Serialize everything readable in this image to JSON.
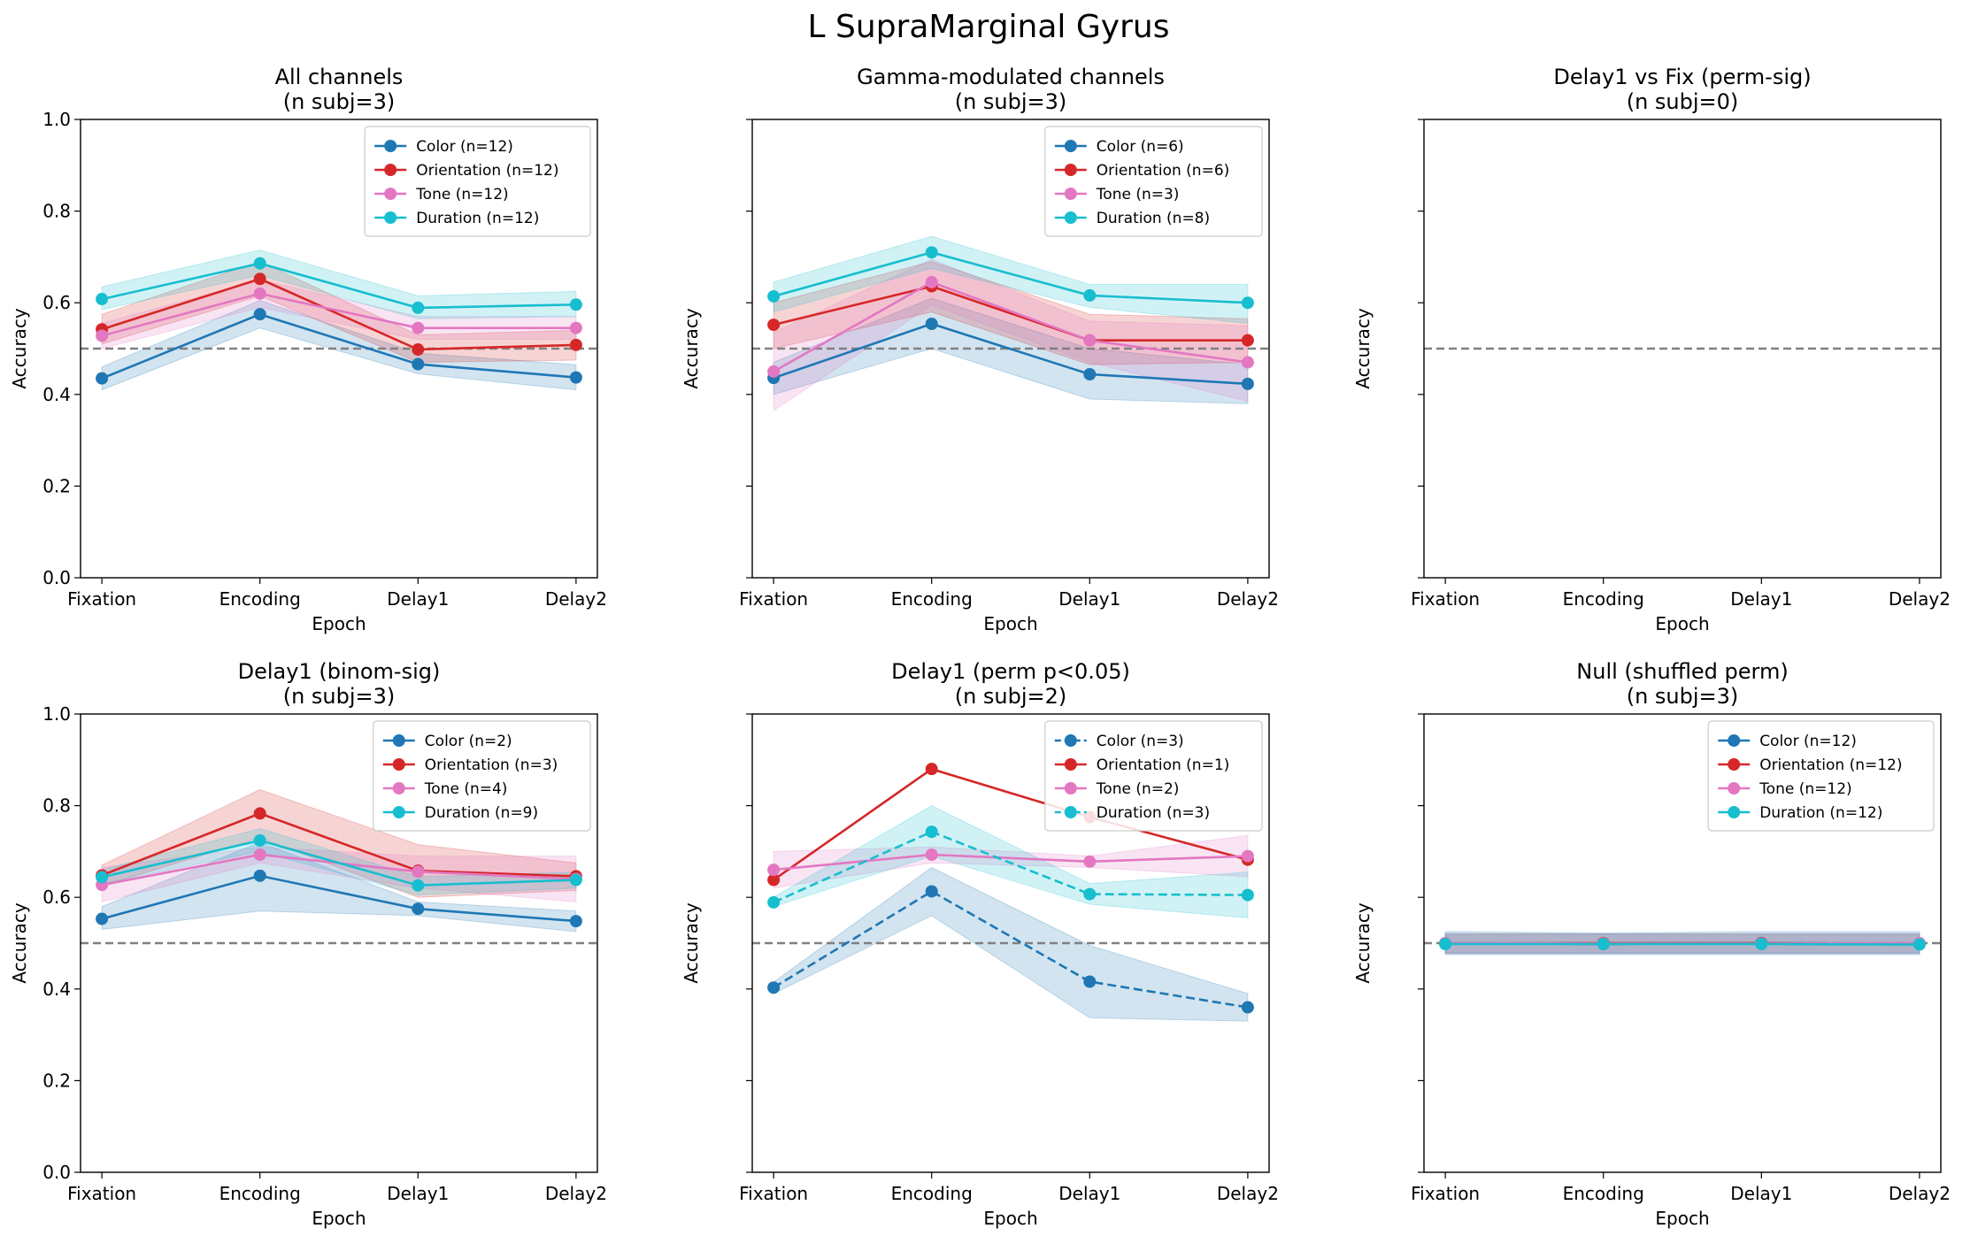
{
  "figure": {
    "suptitle": "L SupraMarginal Gyrus"
  },
  "colors": {
    "Color": "#1f77b4",
    "Orientation": "#d62728",
    "Tone": "#e377c2",
    "Duration": "#17becf",
    "chance": "#808080"
  },
  "chart_data": [
    {
      "type": "line",
      "title": "All channels",
      "subtitle": "(n subj=3)",
      "categories": [
        "Fixation",
        "Encoding",
        "Delay1",
        "Delay2"
      ],
      "xlabel": "Epoch",
      "ylabel": "Accuracy",
      "ylim": [
        0,
        1
      ],
      "yticks": [
        "0.0",
        "0.2",
        "0.4",
        "0.6",
        "0.8",
        "1.0"
      ],
      "show_ytick_labels": true,
      "chance": 0.5,
      "grid": false,
      "legend": "upper right",
      "series": [
        {
          "key": "Color",
          "name": "Color (n=12)",
          "values": [
            0.435,
            0.575,
            0.466,
            0.437
          ],
          "lower": [
            0.41,
            0.545,
            0.445,
            0.41
          ],
          "upper": [
            0.46,
            0.605,
            0.49,
            0.465
          ],
          "dashed": false
        },
        {
          "key": "Orientation",
          "name": "Orientation (n=12)",
          "values": [
            0.542,
            0.652,
            0.498,
            0.508
          ],
          "lower": [
            0.51,
            0.615,
            0.47,
            0.475
          ],
          "upper": [
            0.575,
            0.69,
            0.53,
            0.54
          ],
          "dashed": false
        },
        {
          "key": "Tone",
          "name": "Tone (n=12)",
          "values": [
            0.528,
            0.62,
            0.545,
            0.545
          ],
          "lower": [
            0.5,
            0.59,
            0.52,
            0.52
          ],
          "upper": [
            0.555,
            0.65,
            0.57,
            0.57
          ],
          "dashed": false
        },
        {
          "key": "Duration",
          "name": "Duration (n=12)",
          "values": [
            0.608,
            0.686,
            0.589,
            0.596
          ],
          "lower": [
            0.585,
            0.66,
            0.565,
            0.57
          ],
          "upper": [
            0.635,
            0.715,
            0.615,
            0.625
          ],
          "dashed": false
        }
      ]
    },
    {
      "type": "line",
      "title": "Gamma-modulated channels",
      "subtitle": "(n subj=3)",
      "categories": [
        "Fixation",
        "Encoding",
        "Delay1",
        "Delay2"
      ],
      "xlabel": "Epoch",
      "ylabel": "Accuracy",
      "ylim": [
        0,
        1
      ],
      "yticks": [
        "0.0",
        "0.2",
        "0.4",
        "0.6",
        "0.8",
        "1.0"
      ],
      "show_ytick_labels": false,
      "chance": 0.5,
      "grid": false,
      "legend": "upper right",
      "series": [
        {
          "key": "Color",
          "name": "Color (n=6)",
          "values": [
            0.436,
            0.554,
            0.444,
            0.423
          ],
          "lower": [
            0.4,
            0.5,
            0.39,
            0.38
          ],
          "upper": [
            0.47,
            0.61,
            0.5,
            0.465
          ],
          "dashed": false
        },
        {
          "key": "Orientation",
          "name": "Orientation (n=6)",
          "values": [
            0.552,
            0.636,
            0.518,
            0.518
          ],
          "lower": [
            0.5,
            0.58,
            0.465,
            0.47
          ],
          "upper": [
            0.6,
            0.69,
            0.575,
            0.565
          ],
          "dashed": false
        },
        {
          "key": "Tone",
          "name": "Tone (n=3)",
          "values": [
            0.45,
            0.645,
            0.518,
            0.47
          ],
          "lower": [
            0.365,
            0.595,
            0.47,
            0.385
          ],
          "upper": [
            0.535,
            0.695,
            0.56,
            0.55
          ],
          "dashed": false
        },
        {
          "key": "Duration",
          "name": "Duration (n=8)",
          "values": [
            0.614,
            0.71,
            0.616,
            0.6
          ],
          "lower": [
            0.58,
            0.675,
            0.59,
            0.555
          ],
          "upper": [
            0.645,
            0.745,
            0.64,
            0.64
          ],
          "dashed": false
        }
      ]
    },
    {
      "type": "line",
      "title": "Delay1 vs Fix (perm-sig)",
      "subtitle": "(n subj=0)",
      "categories": [
        "Fixation",
        "Encoding",
        "Delay1",
        "Delay2"
      ],
      "xlabel": "Epoch",
      "ylabel": "Accuracy",
      "ylim": [
        0,
        1
      ],
      "yticks": [
        "0.0",
        "0.2",
        "0.4",
        "0.6",
        "0.8",
        "1.0"
      ],
      "show_ytick_labels": false,
      "chance": 0.5,
      "grid": false,
      "legend": "none",
      "series": []
    },
    {
      "type": "line",
      "title": "Delay1 (binom-sig)",
      "subtitle": "(n subj=3)",
      "categories": [
        "Fixation",
        "Encoding",
        "Delay1",
        "Delay2"
      ],
      "xlabel": "Epoch",
      "ylabel": "Accuracy",
      "ylim": [
        0,
        1
      ],
      "yticks": [
        "0.0",
        "0.2",
        "0.4",
        "0.6",
        "0.8",
        "1.0"
      ],
      "show_ytick_labels": true,
      "chance": 0.5,
      "grid": false,
      "legend": "upper right",
      "series": [
        {
          "key": "Color",
          "name": "Color (n=2)",
          "values": [
            0.553,
            0.647,
            0.575,
            0.548
          ],
          "lower": [
            0.53,
            0.57,
            0.56,
            0.525
          ],
          "upper": [
            0.58,
            0.72,
            0.59,
            0.57
          ],
          "dashed": false
        },
        {
          "key": "Orientation",
          "name": "Orientation (n=3)",
          "values": [
            0.648,
            0.783,
            0.658,
            0.646
          ],
          "lower": [
            0.625,
            0.73,
            0.6,
            0.615
          ],
          "upper": [
            0.67,
            0.835,
            0.715,
            0.675
          ],
          "dashed": false
        },
        {
          "key": "Tone",
          "name": "Tone (n=4)",
          "values": [
            0.627,
            0.693,
            0.656,
            0.64
          ],
          "lower": [
            0.59,
            0.675,
            0.62,
            0.59
          ],
          "upper": [
            0.665,
            0.71,
            0.69,
            0.69
          ],
          "dashed": false
        },
        {
          "key": "Duration",
          "name": "Duration (n=9)",
          "values": [
            0.644,
            0.724,
            0.626,
            0.638
          ],
          "lower": [
            0.63,
            0.7,
            0.605,
            0.62
          ],
          "upper": [
            0.66,
            0.75,
            0.645,
            0.655
          ],
          "dashed": false
        }
      ]
    },
    {
      "type": "line",
      "title": "Delay1 (perm p<0.05)",
      "subtitle": "(n subj=2)",
      "categories": [
        "Fixation",
        "Encoding",
        "Delay1",
        "Delay2"
      ],
      "xlabel": "Epoch",
      "ylabel": "Accuracy",
      "ylim": [
        0,
        1
      ],
      "yticks": [
        "0.0",
        "0.2",
        "0.4",
        "0.6",
        "0.8",
        "1.0"
      ],
      "show_ytick_labels": false,
      "chance": 0.5,
      "grid": false,
      "legend": "upper right",
      "series": [
        {
          "key": "Color",
          "name": "Color (n=3)",
          "values": [
            0.403,
            0.613,
            0.416,
            0.36
          ],
          "lower": [
            0.39,
            0.56,
            0.337,
            0.33
          ],
          "upper": [
            0.415,
            0.665,
            0.495,
            0.39
          ],
          "dashed": true
        },
        {
          "key": "Orientation",
          "name": "Orientation (n=1)",
          "values": [
            0.638,
            0.88,
            0.775,
            0.682
          ],
          "lower": null,
          "upper": null,
          "dashed": false
        },
        {
          "key": "Tone",
          "name": "Tone (n=2)",
          "values": [
            0.66,
            0.693,
            0.678,
            0.69
          ],
          "lower": [
            0.62,
            0.675,
            0.665,
            0.645
          ],
          "upper": [
            0.7,
            0.71,
            0.69,
            0.735
          ],
          "dashed": false
        },
        {
          "key": "Duration",
          "name": "Duration (n=3)",
          "values": [
            0.589,
            0.743,
            0.607,
            0.605
          ],
          "lower": [
            0.58,
            0.69,
            0.585,
            0.555
          ],
          "upper": [
            0.6,
            0.8,
            0.63,
            0.655
          ],
          "dashed": true
        }
      ]
    },
    {
      "type": "line",
      "title": "Null (shuffled perm)",
      "subtitle": "(n subj=3)",
      "categories": [
        "Fixation",
        "Encoding",
        "Delay1",
        "Delay2"
      ],
      "xlabel": "Epoch",
      "ylabel": "Accuracy",
      "ylim": [
        0,
        1
      ],
      "yticks": [
        "0.0",
        "0.2",
        "0.4",
        "0.6",
        "0.8",
        "1.0"
      ],
      "show_ytick_labels": false,
      "chance": 0.5,
      "grid": false,
      "legend": "upper right",
      "series": [
        {
          "key": "Color",
          "name": "Color (n=12)",
          "values": [
            0.5,
            0.498,
            0.5,
            0.499
          ],
          "lower": [
            0.475,
            0.475,
            0.475,
            0.475
          ],
          "upper": [
            0.525,
            0.522,
            0.525,
            0.525
          ],
          "dashed": false
        },
        {
          "key": "Orientation",
          "name": "Orientation (n=12)",
          "values": [
            0.499,
            0.5,
            0.5,
            0.498
          ],
          "lower": [
            0.478,
            0.478,
            0.478,
            0.478
          ],
          "upper": [
            0.52,
            0.52,
            0.52,
            0.52
          ],
          "dashed": false
        },
        {
          "key": "Tone",
          "name": "Tone (n=12)",
          "values": [
            0.5,
            0.499,
            0.499,
            0.5
          ],
          "lower": [
            0.478,
            0.478,
            0.478,
            0.478
          ],
          "upper": [
            0.52,
            0.52,
            0.52,
            0.52
          ],
          "dashed": false
        },
        {
          "key": "Duration",
          "name": "Duration (n=12)",
          "values": [
            0.498,
            0.498,
            0.498,
            0.497
          ],
          "lower": [
            0.478,
            0.478,
            0.478,
            0.478
          ],
          "upper": [
            0.52,
            0.52,
            0.52,
            0.52
          ],
          "dashed": false
        }
      ]
    }
  ]
}
